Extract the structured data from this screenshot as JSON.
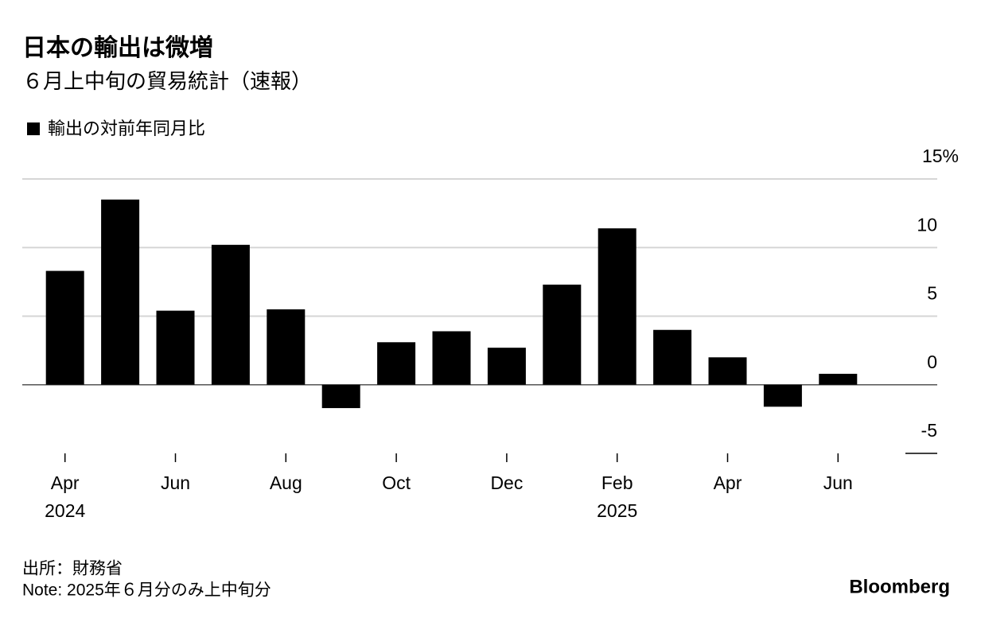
{
  "chart_data": {
    "type": "bar",
    "title": "日本の輸出は微増",
    "subtitle": "６月上中旬の貿易統計（速報）",
    "categories": [
      "Apr",
      null,
      "Jun",
      null,
      "Aug",
      null,
      "Oct",
      null,
      "Dec",
      null,
      "Feb",
      null,
      "Apr",
      null,
      "Jun"
    ],
    "category_years": [
      "2024",
      null,
      null,
      null,
      null,
      null,
      null,
      null,
      null,
      null,
      "2025",
      null,
      null,
      null,
      null
    ],
    "series": [
      {
        "name": "輸出の対前年同月比",
        "color": "#000000",
        "values": [
          8.3,
          13.5,
          5.4,
          10.2,
          5.5,
          -1.7,
          3.1,
          3.9,
          2.7,
          7.3,
          11.4,
          4.0,
          2.0,
          -1.6,
          0.8
        ]
      }
    ],
    "ylim": [
      -5,
      15
    ],
    "yticks": [
      -5,
      0,
      5,
      10,
      {
        "value": 15,
        "label": "15%"
      }
    ],
    "grid": true,
    "source": "出所：財務省",
    "note": "Note: 2025年６月分のみ上中旬分",
    "brand": "Bloomberg"
  }
}
